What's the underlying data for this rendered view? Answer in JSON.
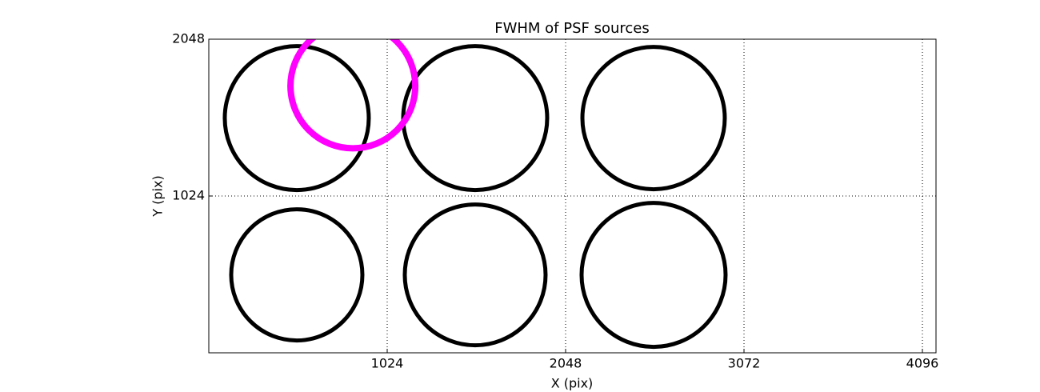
{
  "chart_data": {
    "type": "scatter",
    "title": "FWHM of PSF sources",
    "x_label": "X (pix)",
    "y_label": "Y (pix)",
    "xlim": [
      0,
      4174
    ],
    "ylim": [
      0,
      2048
    ],
    "xticks": [
      1024,
      2048,
      3072,
      4096
    ],
    "yticks": [
      1024,
      2048
    ],
    "grid": true,
    "series": [
      {
        "color": "#000000",
        "line_width": 5,
        "x": [
          505,
          1529,
          2553,
          505,
          1529,
          2553
        ],
        "values": [
          1533,
          1533,
          1533,
          509,
          509,
          509
        ],
        "sizes": [
          90,
          90,
          89,
          82,
          88,
          90
        ]
      },
      {
        "color": "#ff00ff",
        "line_width": 8,
        "x": [
          827
        ],
        "values": [
          1743
        ],
        "sizes": [
          78
        ]
      }
    ]
  }
}
